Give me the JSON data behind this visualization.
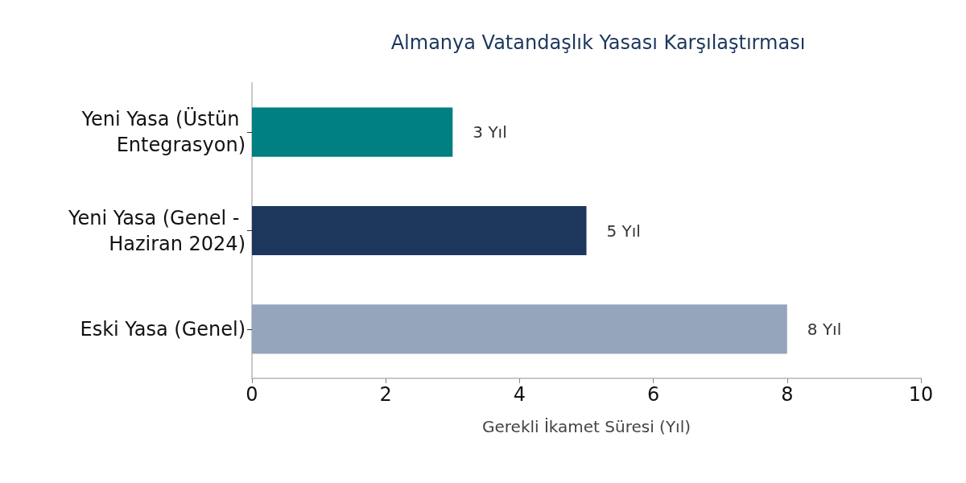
{
  "chart_data": {
    "type": "bar",
    "orientation": "horizontal",
    "title": "Almanya Vatandaşlık Yasası Karşılaştırması",
    "xlabel": "Gerekli İkamet Süresi (Yıl)",
    "categories": [
      "Yeni Yasa (Üstün Entegrasyon)",
      "Yeni Yasa (Genel - Haziran 2024)",
      "Eski Yasa (Genel)"
    ],
    "values": [
      3,
      5,
      8
    ],
    "colors": [
      "#008080",
      "#1d375c",
      "#95a5bb"
    ],
    "value_labels": [
      "3 Yıl",
      "5 Yıl",
      "8 Yıl"
    ],
    "xlim": [
      0,
      10
    ],
    "xticks": [
      0,
      2,
      4,
      6,
      8,
      10
    ],
    "grid": false
  }
}
